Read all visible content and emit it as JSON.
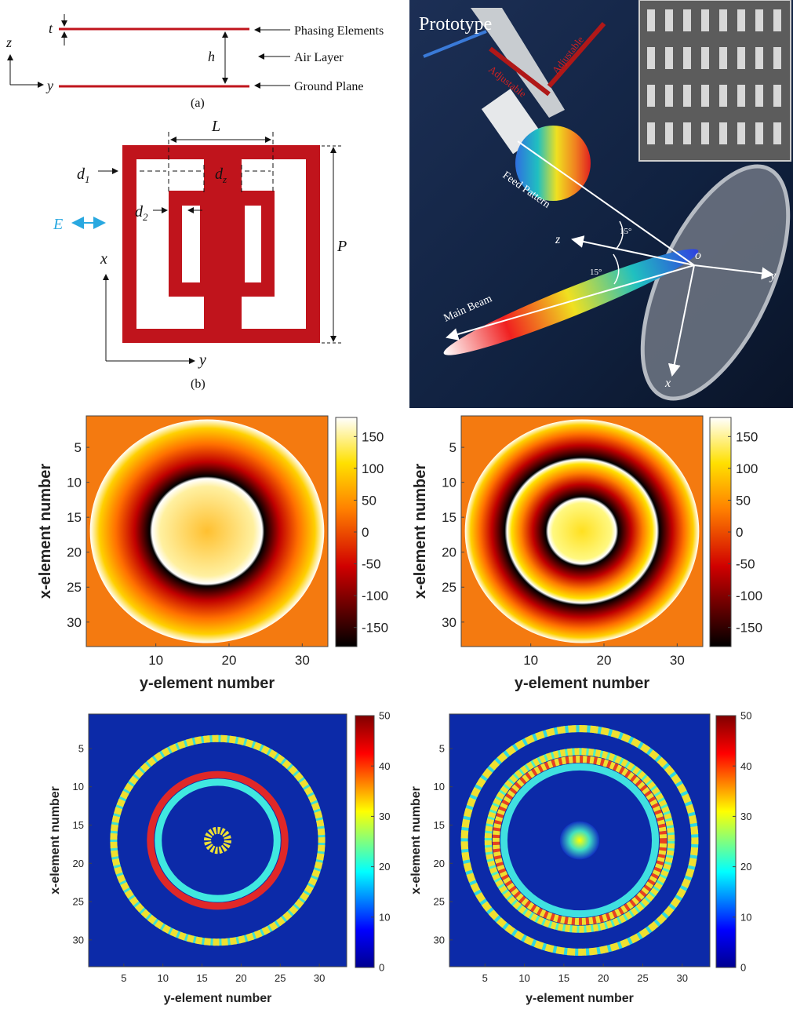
{
  "fig_a": {
    "t": "t",
    "h": "h",
    "z": "z",
    "y": "y",
    "phasing": "Phasing Elements",
    "air": "Air Layer",
    "ground": "Ground Plane",
    "caption": "(a)"
  },
  "fig_b": {
    "L": "L",
    "d1": "d",
    "d1_sub": "1",
    "dz": "d",
    "dz_sub": "z",
    "d2": "d",
    "d2_sub": "2",
    "E": "E",
    "x": "x",
    "y": "y",
    "P": "P",
    "caption": "(b)"
  },
  "photo": {
    "title": "Prototype",
    "adjustable_1": "Adjustable",
    "adjustable_2": "Adjustable",
    "feed": "Feed Pattern",
    "beam": "Main Beam",
    "z": "z",
    "o": "o",
    "y": "y",
    "x": "x",
    "angle_1": "15°",
    "angle_2": "15°"
  },
  "phase_maps": [
    {
      "xlabel": "y-element number",
      "ylabel": "x-element number",
      "xlim": [
        0.5,
        33.5
      ],
      "ylim": [
        0.5,
        33.5
      ],
      "xticks": [
        10,
        20,
        30
      ],
      "yticks": [
        5,
        10,
        15,
        20,
        25,
        30
      ],
      "clim": [
        -180,
        180
      ],
      "cticks": [
        150,
        100,
        50,
        0,
        -50,
        -100,
        -150
      ]
    },
    {
      "xlabel": "y-element number",
      "ylabel": "x-element number",
      "xlim": [
        0.5,
        33.5
      ],
      "ylim": [
        0.5,
        33.5
      ],
      "xticks": [
        10,
        20,
        30
      ],
      "yticks": [
        5,
        10,
        15,
        20,
        25,
        30
      ],
      "clim": [
        -180,
        180
      ],
      "cticks": [
        150,
        100,
        50,
        0,
        -50,
        -100,
        -150
      ]
    }
  ],
  "error_maps": [
    {
      "xlabel": "y-element number",
      "ylabel": "x-element number",
      "xlim": [
        0.5,
        33.5
      ],
      "ylim": [
        0.5,
        33.5
      ],
      "xticks": [
        5,
        10,
        15,
        20,
        25,
        30
      ],
      "yticks": [
        5,
        10,
        15,
        20,
        25,
        30
      ],
      "clim": [
        0,
        50
      ],
      "cticks": [
        50,
        40,
        30,
        20,
        10,
        0
      ]
    },
    {
      "xlabel": "y-element number",
      "ylabel": "x-element number",
      "xlim": [
        0.5,
        33.5
      ],
      "ylim": [
        0.5,
        33.5
      ],
      "xticks": [
        5,
        10,
        15,
        20,
        25,
        30
      ],
      "yticks": [
        5,
        10,
        15,
        20,
        25,
        30
      ],
      "clim": [
        0,
        50
      ],
      "cticks": [
        50,
        40,
        30,
        20,
        10,
        0
      ]
    }
  ]
}
